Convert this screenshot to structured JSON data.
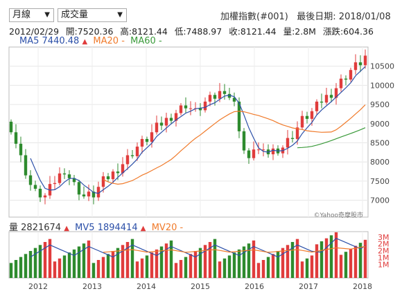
{
  "controls": {
    "period": "月線",
    "indicator": "成交量"
  },
  "header": {
    "title": "加權指數(#001)",
    "last_date_label": "最後日期:",
    "last_date": "2018/01/08"
  },
  "info": {
    "date": "2012/02/29",
    "open": "開:7520.36",
    "high": "高:8121.44",
    "low": "低:7488.97",
    "close": "收:8121.44",
    "volume": "量:2.8M",
    "change": "漲跌:604.36"
  },
  "ma_legend": {
    "ma5_label": "MA5",
    "ma5_value": "7440.48",
    "ma5_arrow": "▲",
    "ma20_label": "MA20",
    "ma20_value": "-",
    "ma60_label": "MA60",
    "ma60_value": "-"
  },
  "vol_legend": {
    "vol_label": "量",
    "vol_value": "2821674",
    "vol_arrow": "▲",
    "mv5_label": "MV5",
    "mv5_value": "1894414",
    "mv5_arrow": "▲",
    "mv20_label": "MV20",
    "mv20_value": "-"
  },
  "watermark": "©Yahoo奇摩股市",
  "colors": {
    "up": "#e03c3c",
    "down": "#2e8b2e",
    "ma5": "#2b4fa8",
    "ma20": "#f07a2a",
    "ma60": "#3a9a3a"
  },
  "chart_data": {
    "type": "candlestick",
    "x_ticks": [
      "2012",
      "2013",
      "2014",
      "2015",
      "2016",
      "2017",
      "2018"
    ],
    "price_ticks": [
      7000,
      7500,
      8000,
      8500,
      9000,
      9500,
      10000,
      10500
    ],
    "price_range": [
      6560,
      11000
    ],
    "volume_ticks": [
      "3M",
      "2M",
      "2M",
      "1M",
      "1M"
    ],
    "volume_tick_values": [
      3000000,
      2500000,
      2000000,
      1500000,
      1000000
    ],
    "volume_range": [
      0,
      3400000
    ]
  }
}
